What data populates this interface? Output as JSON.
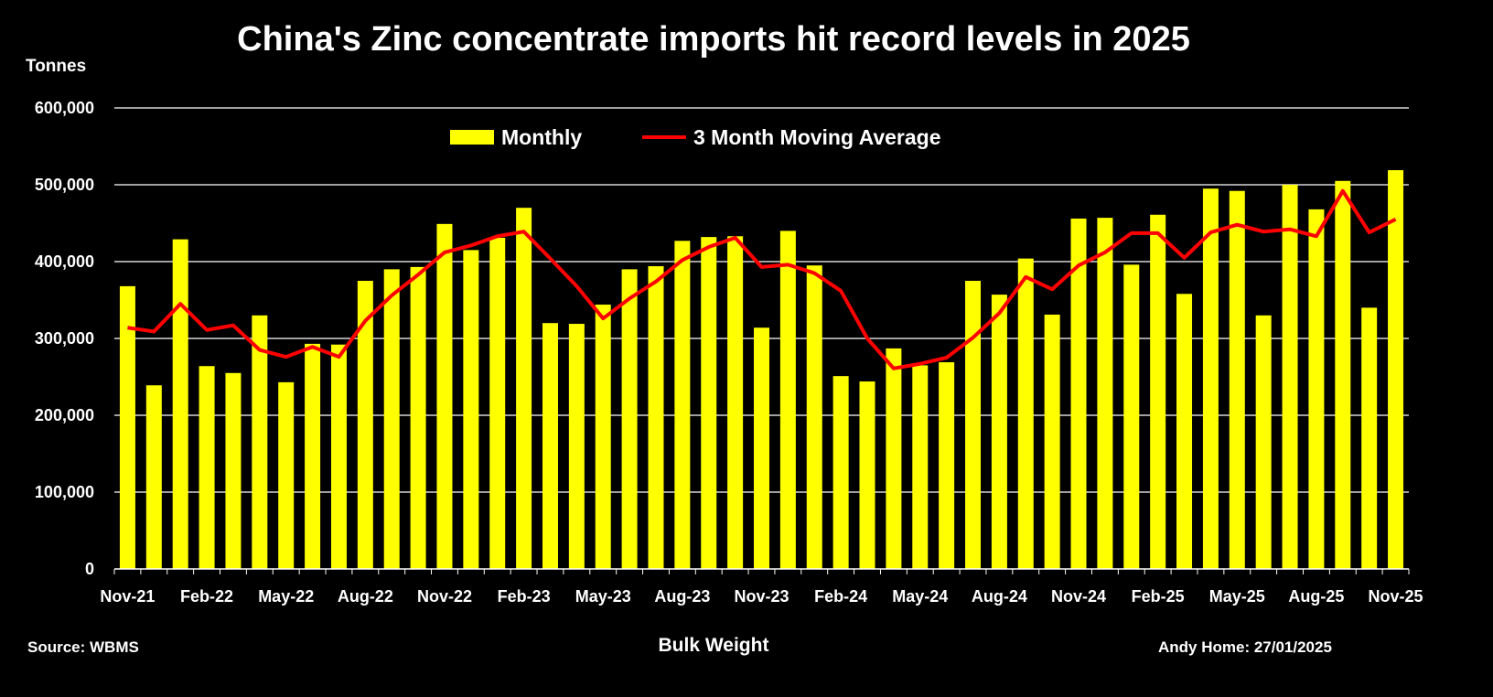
{
  "chart_data": {
    "type": "bar",
    "title": "China's Zinc concentrate imports hit record levels in 2025",
    "ylabel": "Tonnes",
    "xlabel": "Bulk Weight",
    "source": "Source: WBMS",
    "credit": "Andy Home: 27/01/2025",
    "ylim": [
      0,
      600000
    ],
    "yticks": [
      "0",
      "100,000",
      "200,000",
      "300,000",
      "400,000",
      "500,000",
      "600,000"
    ],
    "grid": true,
    "legend_placement": "top-center",
    "categories": [
      "Nov-21",
      "Dec-21",
      "Jan-22",
      "Feb-22",
      "Mar-22",
      "Apr-22",
      "May-22",
      "Jun-22",
      "Jul-22",
      "Aug-22",
      "Sep-22",
      "Oct-22",
      "Nov-22",
      "Dec-22",
      "Jan-23",
      "Feb-23",
      "Mar-23",
      "Apr-23",
      "May-23",
      "Jun-23",
      "Jul-23",
      "Aug-23",
      "Sep-23",
      "Oct-23",
      "Nov-23",
      "Dec-23",
      "Jan-24",
      "Feb-24",
      "Mar-24",
      "Apr-24",
      "May-24",
      "Jun-24",
      "Jul-24",
      "Aug-24",
      "Sep-24",
      "Oct-24",
      "Nov-24",
      "Dec-24",
      "Jan-25",
      "Feb-25",
      "Mar-25",
      "Apr-25",
      "May-25",
      "Jun-25",
      "Jul-25",
      "Aug-25",
      "Sep-25",
      "Oct-25",
      "Nov-25"
    ],
    "xticklabels": [
      "Nov-21",
      "Feb-22",
      "May-22",
      "Aug-22",
      "Nov-22",
      "Feb-23",
      "May-23",
      "Aug-23",
      "Nov-23",
      "Feb-24",
      "May-24",
      "Aug-24",
      "Nov-24",
      "Feb-25",
      "May-25",
      "Aug-25",
      "Nov-25"
    ],
    "series": [
      {
        "name": "Monthly",
        "type": "bar",
        "color": "#FFFF00",
        "values": [
          368000,
          239000,
          429000,
          264000,
          255000,
          330000,
          243000,
          293000,
          292000,
          375000,
          390000,
          393000,
          449000,
          415000,
          431000,
          470000,
          320000,
          319000,
          344000,
          390000,
          394000,
          427000,
          432000,
          433000,
          314000,
          440000,
          395000,
          251000,
          244000,
          287000,
          265000,
          269000,
          375000,
          357000,
          404000,
          331000,
          456000,
          457000,
          396000,
          461000,
          358000,
          495000,
          492000,
          330000,
          500000,
          468000,
          505000,
          340000,
          519000
        ]
      },
      {
        "name": "3 Month Moving Average",
        "type": "line",
        "color": "#FF0000",
        "values": [
          314000,
          309000,
          345000,
          311000,
          317000,
          285000,
          276000,
          289000,
          276000,
          323000,
          356000,
          383000,
          412000,
          421000,
          433000,
          439000,
          404000,
          368000,
          326000,
          352000,
          374000,
          402000,
          419000,
          431000,
          393000,
          396000,
          385000,
          362000,
          300000,
          261000,
          267000,
          275000,
          301000,
          333000,
          380000,
          364000,
          395000,
          412000,
          437000,
          437000,
          405000,
          438000,
          448000,
          439000,
          442000,
          433000,
          492000,
          438000,
          455000
        ]
      }
    ]
  }
}
